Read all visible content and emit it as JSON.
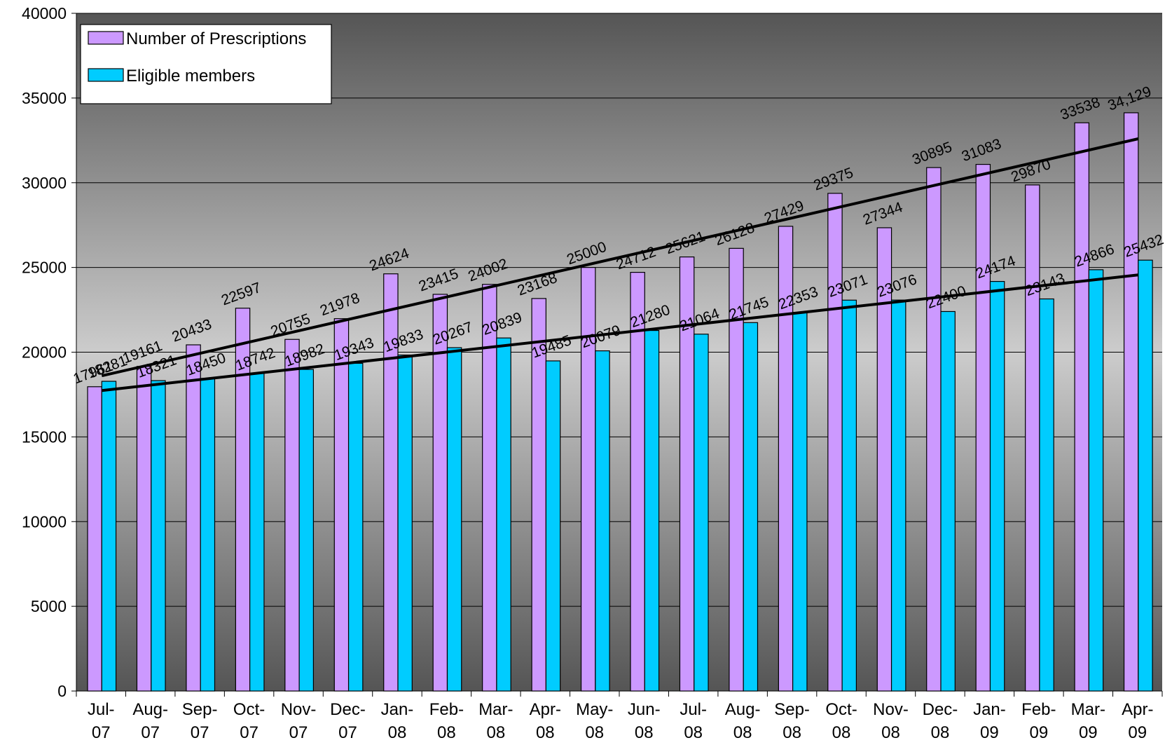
{
  "chart_data": {
    "type": "bar",
    "categories": [
      "Jul-07",
      "Aug-07",
      "Sep-07",
      "Oct-07",
      "Nov-07",
      "Dec-07",
      "Jan-08",
      "Feb-08",
      "Mar-08",
      "Apr-08",
      "May-08",
      "Jun-08",
      "Jul-08",
      "Aug-08",
      "Sep-08",
      "Oct-08",
      "Nov-08",
      "Dec-08",
      "Jan-09",
      "Feb-09",
      "Mar-09",
      "Apr-09"
    ],
    "series": [
      {
        "name": "Number of Prescriptions",
        "color": "#cc99ff",
        "values": [
          17961,
          19161,
          20433,
          22597,
          20755,
          21978,
          24624,
          23415,
          24002,
          23168,
          25000,
          24712,
          25621,
          26128,
          27429,
          29375,
          27344,
          30895,
          31083,
          29870,
          33538,
          34129
        ],
        "value_labels": [
          "17961",
          "19161",
          "20433",
          "22597",
          "20755",
          "21978",
          "24624",
          "23415",
          "24002",
          "23168",
          "25000",
          "24712",
          "25621",
          "26128",
          "27429",
          "29375",
          "27344",
          "30895",
          "31083",
          "29870",
          "33538",
          "34,129"
        ]
      },
      {
        "name": "Eligible members",
        "color": "#00ccff",
        "values": [
          18281,
          18321,
          18450,
          18742,
          18982,
          19343,
          19833,
          20267,
          20839,
          19485,
          20079,
          21280,
          21064,
          21745,
          22353,
          23071,
          23076,
          22400,
          24174,
          23143,
          24866,
          25432
        ]
      }
    ],
    "ylim": [
      0,
      40000
    ],
    "yticks": [
      0,
      5000,
      10000,
      15000,
      20000,
      25000,
      30000,
      35000,
      40000
    ],
    "grid": true,
    "trendline": true,
    "legend": "top-left"
  }
}
